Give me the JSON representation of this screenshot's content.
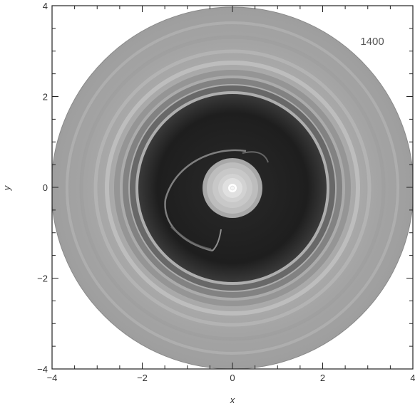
{
  "figure": {
    "frame_label": "1400",
    "x_axis_label": "x",
    "y_axis_label": "y",
    "x_ticks": [
      {
        "value": -4,
        "label": "−4"
      },
      {
        "value": -2,
        "label": "−2"
      },
      {
        "value": 0,
        "label": "0"
      },
      {
        "value": 2,
        "label": "2"
      },
      {
        "value": 4,
        "label": "4"
      }
    ],
    "y_ticks": [
      {
        "value": -4,
        "label": "−4"
      },
      {
        "value": -2,
        "label": "−2"
      },
      {
        "value": 0,
        "label": "0"
      },
      {
        "value": 2,
        "label": "2"
      },
      {
        "value": 4,
        "label": "4"
      }
    ],
    "x_range": [
      -4,
      4
    ],
    "y_range": [
      -4,
      4
    ],
    "colors": {
      "disk_outer": "#a9a9a9",
      "gap": "#1c1c1c",
      "inner_disk": "#bdbdbd",
      "central_star": "#ffffff"
    }
  }
}
